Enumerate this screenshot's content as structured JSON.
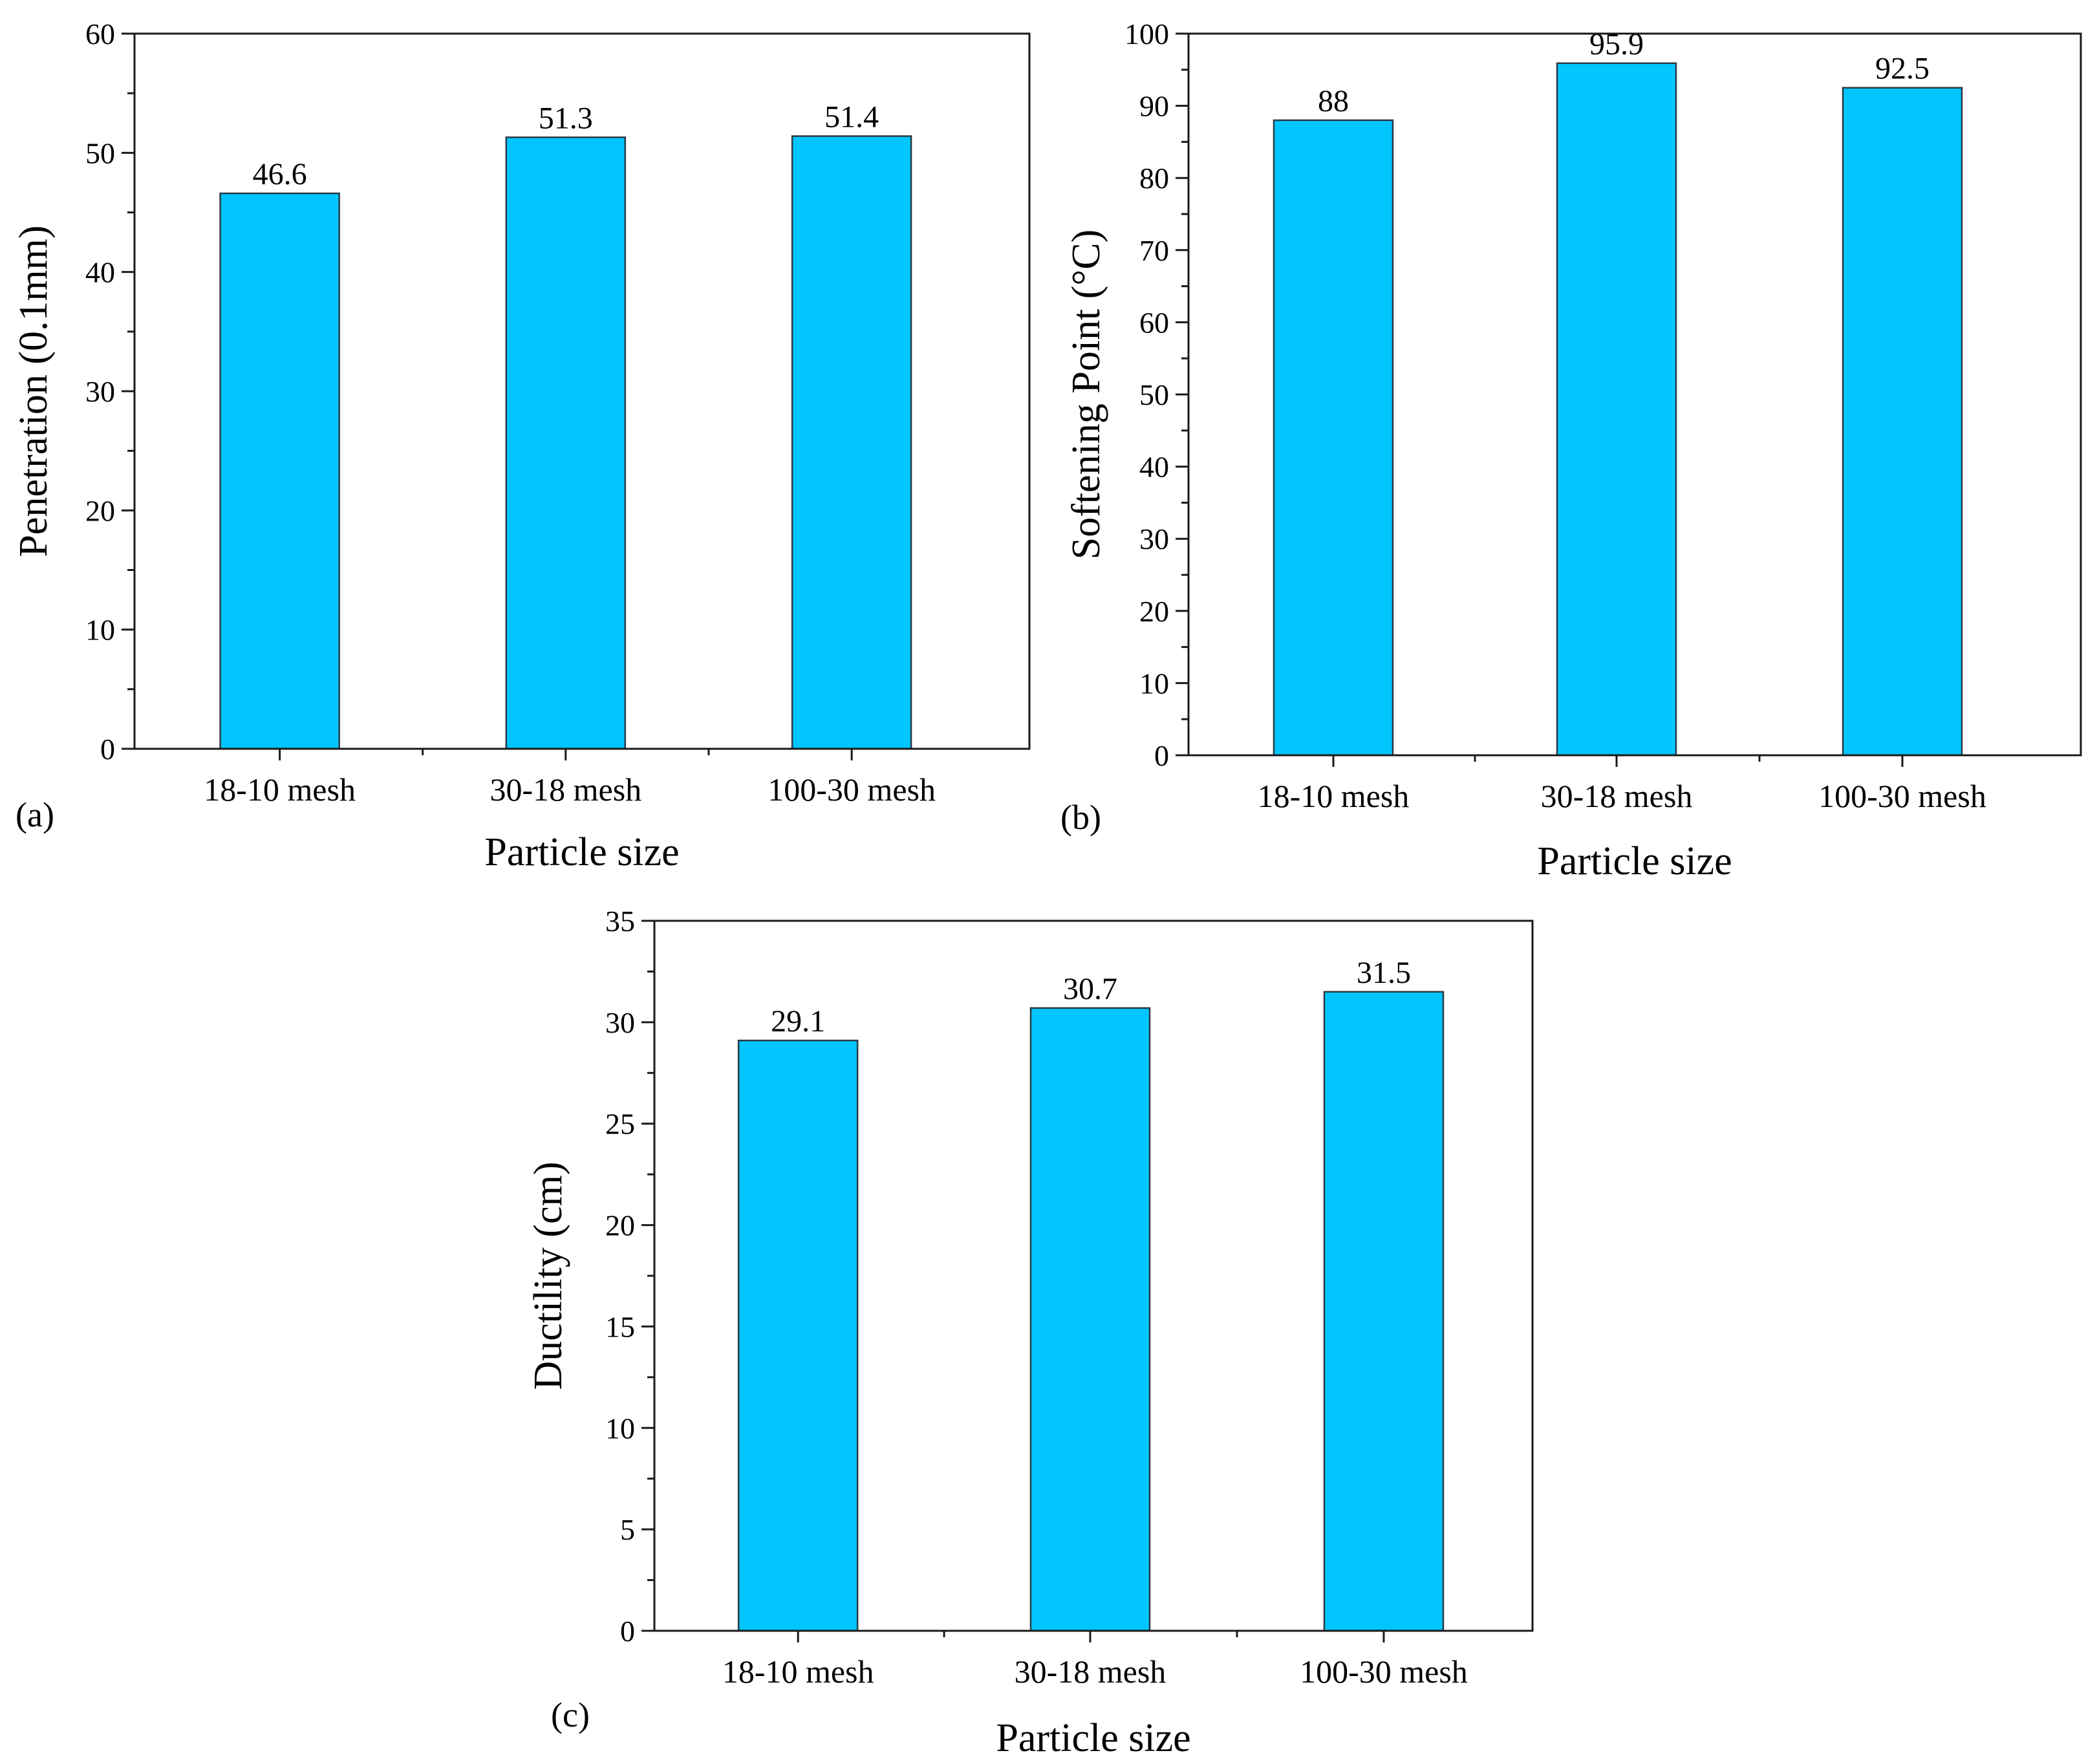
{
  "colors": {
    "bar": "#00c5ff",
    "axis": "#1a1a1a"
  },
  "chart_data": [
    {
      "id": "a",
      "type": "bar",
      "panel_label": "(a)",
      "categories": [
        "18-10 mesh",
        "30-18 mesh",
        "100-30 mesh"
      ],
      "values": [
        46.6,
        51.3,
        51.4
      ],
      "value_labels": [
        "46.6",
        "51.3",
        "51.4"
      ],
      "xlabel": "Particle size",
      "ylabel": "Penetration (0.1mm)",
      "ylim": [
        0,
        60
      ],
      "yticks": [
        0,
        10,
        20,
        30,
        40,
        50,
        60
      ]
    },
    {
      "id": "b",
      "type": "bar",
      "panel_label": "(b)",
      "categories": [
        "18-10 mesh",
        "30-18 mesh",
        "100-30 mesh"
      ],
      "values": [
        88,
        95.9,
        92.5
      ],
      "value_labels": [
        "88",
        "95.9",
        "92.5"
      ],
      "xlabel": "Particle size",
      "ylabel": "Softening Point (°C)",
      "ylim": [
        0,
        100
      ],
      "yticks": [
        0,
        10,
        20,
        30,
        40,
        50,
        60,
        70,
        80,
        90,
        100
      ]
    },
    {
      "id": "c",
      "type": "bar",
      "panel_label": "(c)",
      "categories": [
        "18-10 mesh",
        "30-18 mesh",
        "100-30 mesh"
      ],
      "values": [
        29.1,
        30.7,
        31.5
      ],
      "value_labels": [
        "29.1",
        "30.7",
        "31.5"
      ],
      "xlabel": "Particle size",
      "ylabel": "Ductility (cm)",
      "ylim": [
        0,
        35
      ],
      "yticks": [
        0,
        5,
        10,
        15,
        20,
        25,
        30,
        35
      ]
    }
  ]
}
